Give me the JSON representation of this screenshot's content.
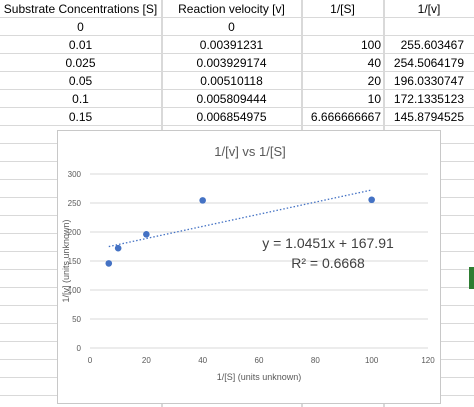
{
  "table": {
    "headers": [
      "Substrate Concentrations [S]",
      "Reaction velocity [v]",
      "1/[S]",
      "1/[v]"
    ],
    "rows": [
      [
        "0",
        "0",
        "",
        ""
      ],
      [
        "0.01",
        "0.00391231",
        "100",
        "255.603467"
      ],
      [
        "0.025",
        "0.003929174",
        "40",
        "254.5064179"
      ],
      [
        "0.05",
        "0.00510118",
        "20",
        "196.0330747"
      ],
      [
        "0.1",
        "0.005809444",
        "10",
        "172.1335123"
      ],
      [
        "0.15",
        "0.006854975",
        "6.666666667",
        "145.8794525"
      ]
    ]
  },
  "chart": {
    "title": "1/[v] vs 1/[S]",
    "trendline_equation": "y = 1.0451x + 167.91",
    "r_squared": "R² = 0.6668"
  },
  "chart_data": {
    "type": "scatter",
    "title": "1/[v] vs 1/[S]",
    "xlabel": "1/[S] (units unknown)",
    "ylabel": "1/[v] (units unknown)",
    "xlim": [
      0,
      120
    ],
    "ylim": [
      0,
      300
    ],
    "xticks": [
      0,
      20,
      40,
      60,
      80,
      100,
      120
    ],
    "yticks": [
      0,
      50,
      100,
      150,
      200,
      250,
      300
    ],
    "points": [
      {
        "x": 100,
        "y": 255.603467
      },
      {
        "x": 40,
        "y": 254.5064179
      },
      {
        "x": 20,
        "y": 196.0330747
      },
      {
        "x": 10,
        "y": 172.1335123
      },
      {
        "x": 6.666666667,
        "y": 145.8794525
      }
    ],
    "trendline": {
      "slope": 1.0451,
      "intercept": 167.91,
      "x_range": [
        6.666666667,
        100
      ],
      "style": "dotted"
    },
    "grid": true,
    "legend": "none",
    "marker_color": "#4472c4",
    "trendline_color": "#4472c4"
  }
}
